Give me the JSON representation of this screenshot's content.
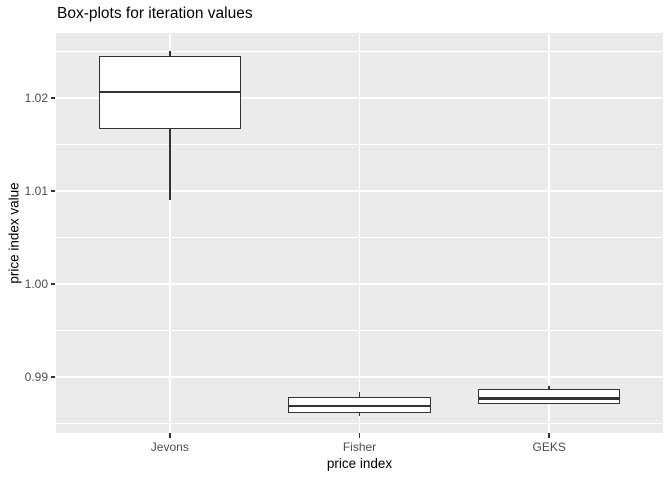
{
  "chart_data": {
    "type": "boxplot",
    "title": "Box-plots for iteration values",
    "xlabel": "price index",
    "ylabel": "price index value",
    "categories": [
      "Jevons",
      "Fisher",
      "GEKS"
    ],
    "series": [
      {
        "name": "Jevons",
        "whisker_low": 1.0091,
        "q1": 1.0167,
        "median": 1.0207,
        "q3": 1.0245,
        "whisker_high": 1.0251
      },
      {
        "name": "Fisher",
        "whisker_low": 0.9858,
        "q1": 0.9861,
        "median": 0.9869,
        "q3": 0.9879,
        "whisker_high": 0.9884
      },
      {
        "name": "GEKS",
        "whisker_low": 0.9871,
        "q1": 0.9871,
        "median": 0.9877,
        "q3": 0.9887,
        "whisker_high": 0.989
      }
    ],
    "ylim": [
      0.984,
      1.027
    ],
    "yticks": [
      {
        "value": 0.99,
        "label": "0.99"
      },
      {
        "value": 1.0,
        "label": "1.00"
      },
      {
        "value": 1.01,
        "label": "1.01"
      },
      {
        "value": 1.02,
        "label": "1.02"
      }
    ],
    "yticks_minor": [
      0.985,
      0.995,
      1.005,
      1.015,
      1.025
    ],
    "grid": true,
    "legend": "none",
    "colors": {
      "panel_bg": "#EBEBEB",
      "gridline": "#FFFFFF",
      "box_border": "#333333",
      "box_fill": "#FFFFFF",
      "tick_label": "#4D4D4D",
      "axis_title": "#000000",
      "title": "#000000",
      "tick_mark": "#333333"
    }
  }
}
